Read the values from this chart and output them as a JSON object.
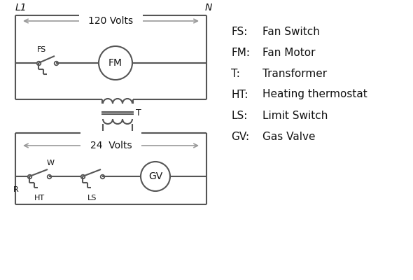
{
  "bg_color": "#ffffff",
  "line_color": "#555555",
  "arrow_color": "#999999",
  "text_color": "#111111",
  "legend": [
    [
      "FS",
      "Fan Switch"
    ],
    [
      "FM",
      "Fan Motor"
    ],
    [
      "T",
      "Transformer"
    ],
    [
      "HT",
      "Heating thermostat"
    ],
    [
      "LS",
      "Limit Switch"
    ],
    [
      "GV",
      "Gas Valve"
    ]
  ],
  "L1_label": "L1",
  "N_label": "N",
  "volts120": "120 Volts",
  "volts24": "24  Volts"
}
